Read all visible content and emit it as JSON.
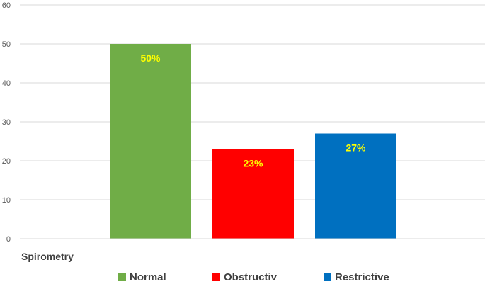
{
  "chart_data": {
    "type": "bar",
    "categories": [
      "Spirometry"
    ],
    "series": [
      {
        "name": "Normal",
        "values": [
          50
        ],
        "label": "50%",
        "color": "#70ad47"
      },
      {
        "name": "Obstructiv",
        "values": [
          23
        ],
        "label": "23%",
        "color": "#ff0000"
      },
      {
        "name": "Restrictive",
        "values": [
          27
        ],
        "label": "27%",
        "color": "#0070c0"
      }
    ],
    "yticks": [
      "0",
      "10",
      "20",
      "30",
      "40",
      "50",
      "60"
    ],
    "ylim": [
      0,
      60
    ],
    "grid": true,
    "legend_position": "bottom",
    "data_label_color": "#ffff00"
  }
}
